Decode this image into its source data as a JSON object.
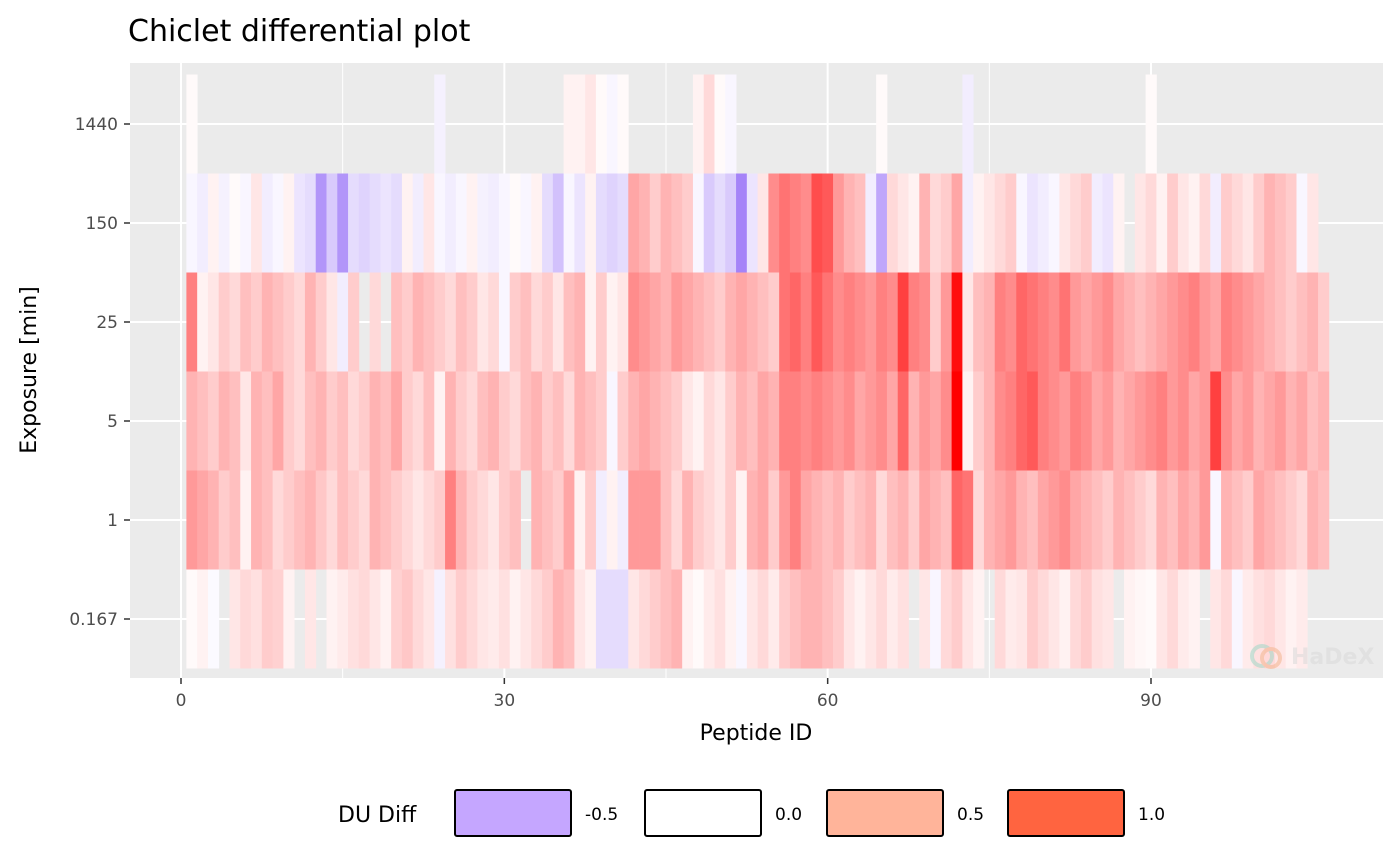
{
  "chart_data": {
    "type": "heatmap",
    "title": "Chiclet differential plot",
    "xlabel": "Peptide ID",
    "ylabel": "Exposure [min]",
    "xlim": [
      0,
      107
    ],
    "x_ticks": [
      0,
      30,
      60,
      90
    ],
    "y_categories": [
      "0.167",
      "1",
      "5",
      "25",
      "150",
      "1440"
    ],
    "color_scale": {
      "title": "DU Diff",
      "low": "#9F7AF8",
      "mid": "#FFFFFF",
      "high": "#FF0000",
      "legend": [
        {
          "value": -0.5,
          "label": "-0.5",
          "color": "#C5A6FF"
        },
        {
          "value": 0.0,
          "label": "0.0",
          "color": "#FFFFFF"
        },
        {
          "value": 0.5,
          "label": "0.5",
          "color": "#FFB49A"
        },
        {
          "value": 1.0,
          "label": "1.0",
          "color": "#FF6440"
        }
      ]
    },
    "grid": true,
    "legend_position": "bottom",
    "peptides_x": [
      1,
      2,
      3,
      4,
      5,
      6,
      7,
      8,
      9,
      10,
      11,
      12,
      13,
      14,
      15,
      16,
      17,
      18,
      19,
      20,
      21,
      22,
      23,
      24,
      25,
      26,
      27,
      28,
      29,
      30,
      31,
      32,
      33,
      34,
      35,
      36,
      37,
      38,
      39,
      40,
      41,
      42,
      43,
      44,
      45,
      46,
      47,
      48,
      49,
      50,
      51,
      52,
      53,
      54,
      55,
      56,
      57,
      58,
      59,
      60,
      61,
      62,
      63,
      64,
      65,
      66,
      67,
      68,
      69,
      70,
      71,
      72,
      73,
      74,
      75,
      76,
      77,
      78,
      79,
      80,
      81,
      82,
      83,
      84,
      85,
      86,
      87,
      88,
      89,
      90,
      91,
      92,
      93,
      94,
      95,
      96,
      97,
      98,
      99,
      100,
      101,
      102,
      103,
      104,
      105,
      106
    ],
    "rows": [
      {
        "exposure": "0.167",
        "values": [
          0.02,
          0.05,
          -0.03,
          null,
          0.1,
          0.15,
          0.12,
          0.2,
          0.18,
          0.05,
          null,
          0.1,
          null,
          0.05,
          0.08,
          0.12,
          0.15,
          0.1,
          0.05,
          0.18,
          0.22,
          0.15,
          0.1,
          -0.08,
          0.12,
          0.2,
          0.15,
          0.1,
          0.08,
          0.12,
          0.05,
          0.1,
          0.15,
          0.2,
          0.3,
          0.25,
          0.1,
          0.05,
          -0.2,
          -0.2,
          -0.2,
          0.1,
          0.15,
          0.2,
          0.25,
          0.3,
          0.05,
          0.02,
          0.08,
          0.12,
          0.05,
          -0.05,
          0.1,
          0.15,
          0.08,
          0.2,
          0.25,
          0.3,
          0.3,
          0.25,
          0.2,
          0.1,
          0.05,
          0.1,
          0.15,
          0.08,
          0.12,
          null,
          0.1,
          -0.05,
          0.15,
          0.2,
          0.1,
          0.05,
          null,
          0.15,
          0.08,
          0.1,
          0.2,
          0.15,
          0.1,
          0.05,
          0.15,
          0.2,
          0.12,
          0.1,
          null,
          0.05,
          0.03,
          0.02,
          0.1,
          0.15,
          0.08,
          0.05,
          null,
          0.1,
          0.15,
          -0.05,
          0.08,
          0.12,
          0.15,
          0.1,
          0.05,
          0.08,
          null,
          null
        ]
      },
      {
        "exposure": "1",
        "values": [
          0.4,
          0.35,
          0.3,
          0.2,
          0.25,
          0.05,
          0.3,
          0.25,
          0.15,
          0.2,
          0.25,
          0.3,
          0.22,
          0.15,
          0.25,
          0.2,
          0.15,
          0.3,
          0.25,
          0.2,
          0.15,
          0.1,
          0.15,
          0.2,
          0.5,
          0.3,
          0.2,
          0.15,
          0.1,
          0.2,
          0.25,
          null,
          0.3,
          0.25,
          0.2,
          0.35,
          0.05,
          0.2,
          -0.1,
          0.05,
          -0.1,
          0.4,
          0.4,
          0.4,
          0.25,
          0.15,
          0.3,
          0.2,
          0.15,
          0.1,
          0.2,
          0.05,
          0.3,
          0.35,
          0.2,
          0.4,
          0.5,
          0.35,
          0.3,
          0.25,
          0.3,
          0.2,
          0.25,
          0.3,
          0.15,
          0.25,
          0.3,
          0.2,
          0.35,
          0.3,
          0.25,
          0.6,
          0.55,
          0.15,
          0.3,
          0.35,
          0.4,
          0.3,
          0.25,
          0.35,
          0.4,
          0.45,
          0.35,
          0.3,
          0.25,
          0.2,
          0.3,
          0.25,
          0.2,
          0.15,
          0.3,
          0.25,
          0.35,
          0.3,
          0.4,
          -0.05,
          0.3,
          0.25,
          0.2,
          0.35,
          0.3,
          0.25,
          0.2,
          0.15,
          0.3,
          0.25
        ]
      },
      {
        "exposure": "5",
        "values": [
          0.3,
          0.25,
          0.2,
          0.3,
          0.25,
          0.1,
          0.3,
          0.25,
          0.35,
          0.2,
          0.15,
          0.25,
          0.3,
          0.2,
          0.25,
          0.15,
          0.2,
          0.3,
          0.25,
          0.35,
          0.2,
          0.15,
          0.25,
          0.05,
          0.3,
          0.2,
          0.15,
          0.25,
          0.3,
          0.2,
          0.15,
          0.25,
          0.3,
          0.2,
          0.25,
          0.15,
          0.3,
          0.25,
          0.2,
          -0.05,
          0.2,
          0.3,
          0.35,
          0.3,
          0.25,
          0.2,
          0.1,
          0.05,
          0.15,
          0.1,
          0.2,
          0.3,
          0.25,
          0.35,
          0.3,
          0.5,
          0.5,
          0.45,
          0.5,
          0.45,
          0.4,
          0.45,
          0.35,
          0.4,
          0.45,
          0.35,
          0.6,
          0.3,
          0.4,
          0.35,
          0.45,
          1.0,
          0.05,
          0.2,
          0.3,
          0.45,
          0.5,
          0.6,
          0.65,
          0.5,
          0.45,
          0.4,
          0.5,
          0.45,
          0.35,
          0.4,
          0.3,
          0.35,
          0.4,
          0.45,
          0.5,
          0.4,
          0.45,
          0.35,
          0.4,
          0.75,
          0.45,
          0.35,
          0.4,
          0.3,
          0.35,
          0.4,
          0.3,
          0.35,
          0.25,
          0.3
        ]
      },
      {
        "exposure": "25",
        "values": [
          0.5,
          0.05,
          0.1,
          0.2,
          0.15,
          0.25,
          0.2,
          0.3,
          0.25,
          0.2,
          0.15,
          0.3,
          0.2,
          0.1,
          -0.1,
          0.2,
          null,
          0.15,
          null,
          0.25,
          0.2,
          0.3,
          0.25,
          0.2,
          0.15,
          0.25,
          0.2,
          0.1,
          0.15,
          -0.05,
          0.2,
          0.25,
          0.15,
          0.2,
          0.1,
          0.25,
          0.3,
          0.05,
          0.2,
          0.05,
          0.1,
          0.45,
          0.4,
          0.35,
          0.3,
          0.4,
          0.35,
          0.3,
          0.25,
          0.2,
          0.3,
          0.35,
          0.3,
          0.25,
          0.2,
          0.55,
          0.6,
          0.5,
          0.65,
          0.55,
          0.45,
          0.5,
          0.45,
          0.4,
          0.5,
          0.45,
          0.75,
          0.5,
          0.45,
          0.2,
          0.4,
          0.95,
          0.1,
          0.25,
          0.3,
          0.5,
          0.45,
          0.6,
          0.55,
          0.5,
          0.45,
          0.55,
          0.4,
          0.35,
          0.4,
          0.45,
          0.35,
          0.3,
          0.25,
          0.3,
          0.35,
          0.4,
          0.45,
          0.5,
          0.4,
          0.35,
          0.5,
          0.45,
          0.4,
          0.35,
          0.3,
          0.25,
          0.2,
          0.25,
          0.3,
          0.2
        ]
      },
      {
        "exposure": "150",
        "values": [
          -0.05,
          -0.1,
          0.05,
          -0.08,
          0.02,
          -0.05,
          0.1,
          -0.1,
          -0.05,
          0.05,
          -0.15,
          -0.2,
          -0.6,
          -0.3,
          -0.6,
          -0.2,
          -0.25,
          -0.2,
          -0.15,
          -0.2,
          0.05,
          -0.1,
          0.1,
          -0.05,
          -0.1,
          -0.05,
          0.05,
          -0.08,
          -0.1,
          -0.05,
          0.02,
          -0.05,
          0.05,
          -0.2,
          -0.35,
          -0.05,
          -0.15,
          0.05,
          -0.2,
          -0.25,
          -0.2,
          0.35,
          0.3,
          0.2,
          0.3,
          0.25,
          0.2,
          -0.05,
          -0.3,
          -0.2,
          -0.3,
          -0.7,
          -0.15,
          0.1,
          0.45,
          0.55,
          0.5,
          0.45,
          0.7,
          0.65,
          0.4,
          0.3,
          0.25,
          -0.1,
          -0.5,
          0.15,
          0.1,
          0.05,
          0.3,
          0.15,
          0.2,
          0.35,
          -0.1,
          0.05,
          0.1,
          0.15,
          0.2,
          -0.05,
          -0.15,
          -0.1,
          -0.05,
          0.1,
          0.15,
          0.2,
          -0.1,
          -0.15,
          0.05,
          null,
          0.1,
          0.15,
          0.05,
          0.2,
          0.1,
          0.05,
          0.15,
          -0.1,
          0.2,
          0.15,
          0.1,
          0.2,
          0.3,
          0.25,
          0.2,
          -0.05,
          0.1,
          null
        ]
      },
      {
        "exposure": "1440",
        "values": [
          0.02,
          null,
          null,
          null,
          null,
          null,
          null,
          null,
          null,
          null,
          null,
          null,
          null,
          null,
          null,
          null,
          null,
          null,
          null,
          null,
          null,
          null,
          null,
          -0.08,
          null,
          null,
          null,
          null,
          null,
          null,
          null,
          null,
          null,
          null,
          null,
          0.05,
          0.05,
          0.1,
          0.02,
          -0.05,
          0.02,
          null,
          null,
          null,
          null,
          null,
          null,
          0.05,
          0.15,
          0.02,
          -0.05,
          null,
          null,
          null,
          null,
          null,
          null,
          null,
          null,
          null,
          null,
          null,
          null,
          null,
          0.02,
          null,
          null,
          null,
          null,
          null,
          null,
          null,
          -0.1,
          null,
          null,
          null,
          null,
          null,
          null,
          null,
          null,
          null,
          null,
          null,
          null,
          null,
          null,
          null,
          null,
          0.02,
          null,
          null,
          null,
          null,
          null,
          null,
          null,
          null,
          null,
          null,
          null,
          null,
          null,
          null,
          null,
          null
        ]
      }
    ]
  },
  "watermark": {
    "text": "HaDeX"
  }
}
